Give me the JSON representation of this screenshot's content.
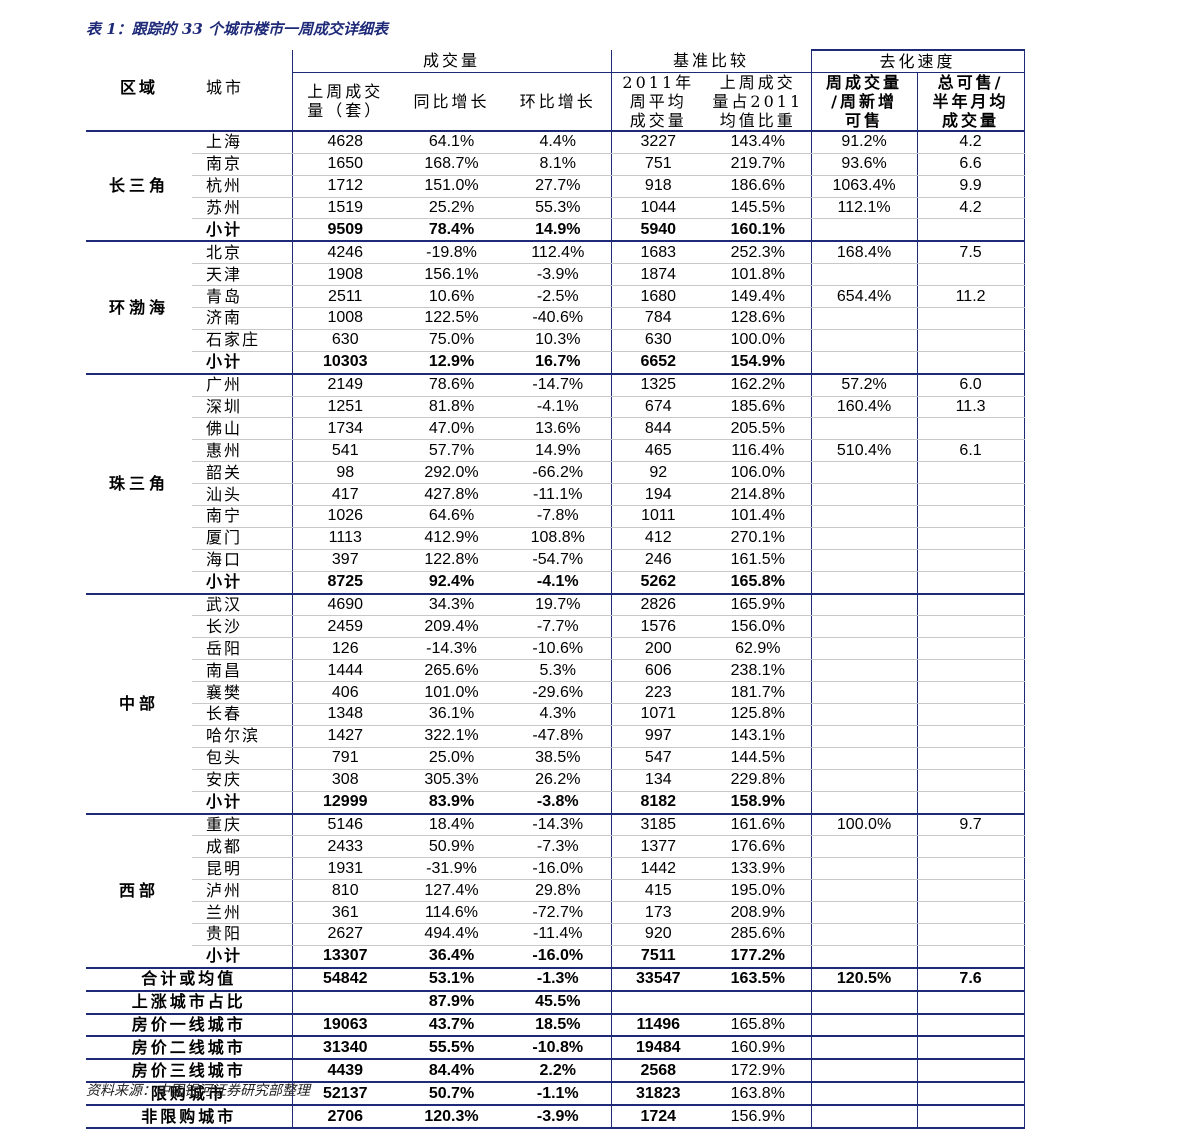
{
  "title": "表 1：跟踪的 33 个城市楼市一周成交详细表",
  "source": "资料来源：中国银河证券研究部整理",
  "header": {
    "region": "区域",
    "city": "城市",
    "group_volume": "成交量",
    "group_benchmark": "基准比较",
    "group_destock": "去化速度",
    "col_last_week": [
      "上周成交",
      "量（套）"
    ],
    "col_yoy": "同比增长",
    "col_mom": "环比增长",
    "col_avg2011": [
      "2011年",
      "周平均",
      "成交量"
    ],
    "col_ratio2011": [
      "上周成交",
      "量占2011",
      "均值比重"
    ],
    "col_weekly_ratio": [
      "周成交量",
      "/周新增",
      "可售"
    ],
    "col_total_avail": [
      "总可售/",
      "半年月均",
      "成交量"
    ]
  },
  "regions": [
    {
      "name": "长三角",
      "rows": [
        [
          "上海",
          "4628",
          "64.1%",
          "4.4%",
          "3227",
          "143.4%",
          "91.2%",
          "4.2"
        ],
        [
          "南京",
          "1650",
          "168.7%",
          "8.1%",
          "751",
          "219.7%",
          "93.6%",
          "6.6"
        ],
        [
          "杭州",
          "1712",
          "151.0%",
          "27.7%",
          "918",
          "186.6%",
          "1063.4%",
          "9.9"
        ],
        [
          "苏州",
          "1519",
          "25.2%",
          "55.3%",
          "1044",
          "145.5%",
          "112.1%",
          "4.2"
        ]
      ],
      "subtotal": [
        "小计",
        "9509",
        "78.4%",
        "14.9%",
        "5940",
        "160.1%",
        "",
        ""
      ]
    },
    {
      "name": "环渤海",
      "rows": [
        [
          "北京",
          "4246",
          "-19.8%",
          "112.4%",
          "1683",
          "252.3%",
          "168.4%",
          "7.5"
        ],
        [
          "天津",
          "1908",
          "156.1%",
          "-3.9%",
          "1874",
          "101.8%",
          "",
          ""
        ],
        [
          "青岛",
          "2511",
          "10.6%",
          "-2.5%",
          "1680",
          "149.4%",
          "654.4%",
          "11.2"
        ],
        [
          "济南",
          "1008",
          "122.5%",
          "-40.6%",
          "784",
          "128.6%",
          "",
          ""
        ],
        [
          "石家庄",
          "630",
          "75.0%",
          "10.3%",
          "630",
          "100.0%",
          "",
          ""
        ]
      ],
      "subtotal": [
        "小计",
        "10303",
        "12.9%",
        "16.7%",
        "6652",
        "154.9%",
        "",
        ""
      ]
    },
    {
      "name": "珠三角",
      "rows": [
        [
          "广州",
          "2149",
          "78.6%",
          "-14.7%",
          "1325",
          "162.2%",
          "57.2%",
          "6.0"
        ],
        [
          "深圳",
          "1251",
          "81.8%",
          "-4.1%",
          "674",
          "185.6%",
          "160.4%",
          "11.3"
        ],
        [
          "佛山",
          "1734",
          "47.0%",
          "13.6%",
          "844",
          "205.5%",
          "",
          ""
        ],
        [
          "惠州",
          "541",
          "57.7%",
          "14.9%",
          "465",
          "116.4%",
          "510.4%",
          "6.1"
        ],
        [
          "韶关",
          "98",
          "292.0%",
          "-66.2%",
          "92",
          "106.0%",
          "",
          ""
        ],
        [
          "汕头",
          "417",
          "427.8%",
          "-11.1%",
          "194",
          "214.8%",
          "",
          ""
        ],
        [
          "南宁",
          "1026",
          "64.6%",
          "-7.8%",
          "1011",
          "101.4%",
          "",
          ""
        ],
        [
          "厦门",
          "1113",
          "412.9%",
          "108.8%",
          "412",
          "270.1%",
          "",
          ""
        ],
        [
          "海口",
          "397",
          "122.8%",
          "-54.7%",
          "246",
          "161.5%",
          "",
          ""
        ]
      ],
      "subtotal": [
        "小计",
        "8725",
        "92.4%",
        "-4.1%",
        "5262",
        "165.8%",
        "",
        ""
      ]
    },
    {
      "name": "中部",
      "rows": [
        [
          "武汉",
          "4690",
          "34.3%",
          "19.7%",
          "2826",
          "165.9%",
          "",
          ""
        ],
        [
          "长沙",
          "2459",
          "209.4%",
          "-7.7%",
          "1576",
          "156.0%",
          "",
          ""
        ],
        [
          "岳阳",
          "126",
          "-14.3%",
          "-10.6%",
          "200",
          "62.9%",
          "",
          ""
        ],
        [
          "南昌",
          "1444",
          "265.6%",
          "5.3%",
          "606",
          "238.1%",
          "",
          ""
        ],
        [
          "襄樊",
          "406",
          "101.0%",
          "-29.6%",
          "223",
          "181.7%",
          "",
          ""
        ],
        [
          "长春",
          "1348",
          "36.1%",
          "4.3%",
          "1071",
          "125.8%",
          "",
          ""
        ],
        [
          "哈尔滨",
          "1427",
          "322.1%",
          "-47.8%",
          "997",
          "143.1%",
          "",
          ""
        ],
        [
          "包头",
          "791",
          "25.0%",
          "38.5%",
          "547",
          "144.5%",
          "",
          ""
        ],
        [
          "安庆",
          "308",
          "305.3%",
          "26.2%",
          "134",
          "229.8%",
          "",
          ""
        ]
      ],
      "subtotal": [
        "小计",
        "12999",
        "83.9%",
        "-3.8%",
        "8182",
        "158.9%",
        "",
        ""
      ]
    },
    {
      "name": "西部",
      "rows": [
        [
          "重庆",
          "5146",
          "18.4%",
          "-14.3%",
          "3185",
          "161.6%",
          "100.0%",
          "9.7"
        ],
        [
          "成都",
          "2433",
          "50.9%",
          "-7.3%",
          "1377",
          "176.6%",
          "",
          ""
        ],
        [
          "昆明",
          "1931",
          "-31.9%",
          "-16.0%",
          "1442",
          "133.9%",
          "",
          ""
        ],
        [
          "泸州",
          "810",
          "127.4%",
          "29.8%",
          "415",
          "195.0%",
          "",
          ""
        ],
        [
          "兰州",
          "361",
          "114.6%",
          "-72.7%",
          "173",
          "208.9%",
          "",
          ""
        ],
        [
          "贵阳",
          "2627",
          "494.4%",
          "-11.4%",
          "920",
          "285.6%",
          "",
          ""
        ]
      ],
      "subtotal": [
        "小计",
        "13307",
        "36.4%",
        "-16.0%",
        "7511",
        "177.2%",
        "",
        ""
      ]
    }
  ],
  "totals": [
    [
      "合计或均值",
      "54842",
      "53.1%",
      "-1.3%",
      "33547",
      "163.5%",
      "120.5%",
      "7.6"
    ],
    [
      "上涨城市占比",
      "",
      "87.9%",
      "45.5%",
      "",
      "",
      "",
      ""
    ],
    [
      "房价一线城市",
      "19063",
      "43.7%",
      "18.5%",
      "11496",
      "165.8%",
      "",
      ""
    ],
    [
      "房价二线城市",
      "31340",
      "55.5%",
      "-10.8%",
      "19484",
      "160.9%",
      "",
      ""
    ],
    [
      "房价三线城市",
      "4439",
      "84.4%",
      "2.2%",
      "2568",
      "172.9%",
      "",
      ""
    ],
    [
      "限购城市",
      "52137",
      "50.7%",
      "-1.1%",
      "31823",
      "163.8%",
      "",
      ""
    ],
    [
      "非限购城市",
      "2706",
      "120.3%",
      "-3.9%",
      "1724",
      "156.9%",
      "",
      ""
    ]
  ],
  "colors": {
    "rule": "#1e2a78",
    "grid": "#c8c8c8",
    "title": "#1e2a78"
  }
}
